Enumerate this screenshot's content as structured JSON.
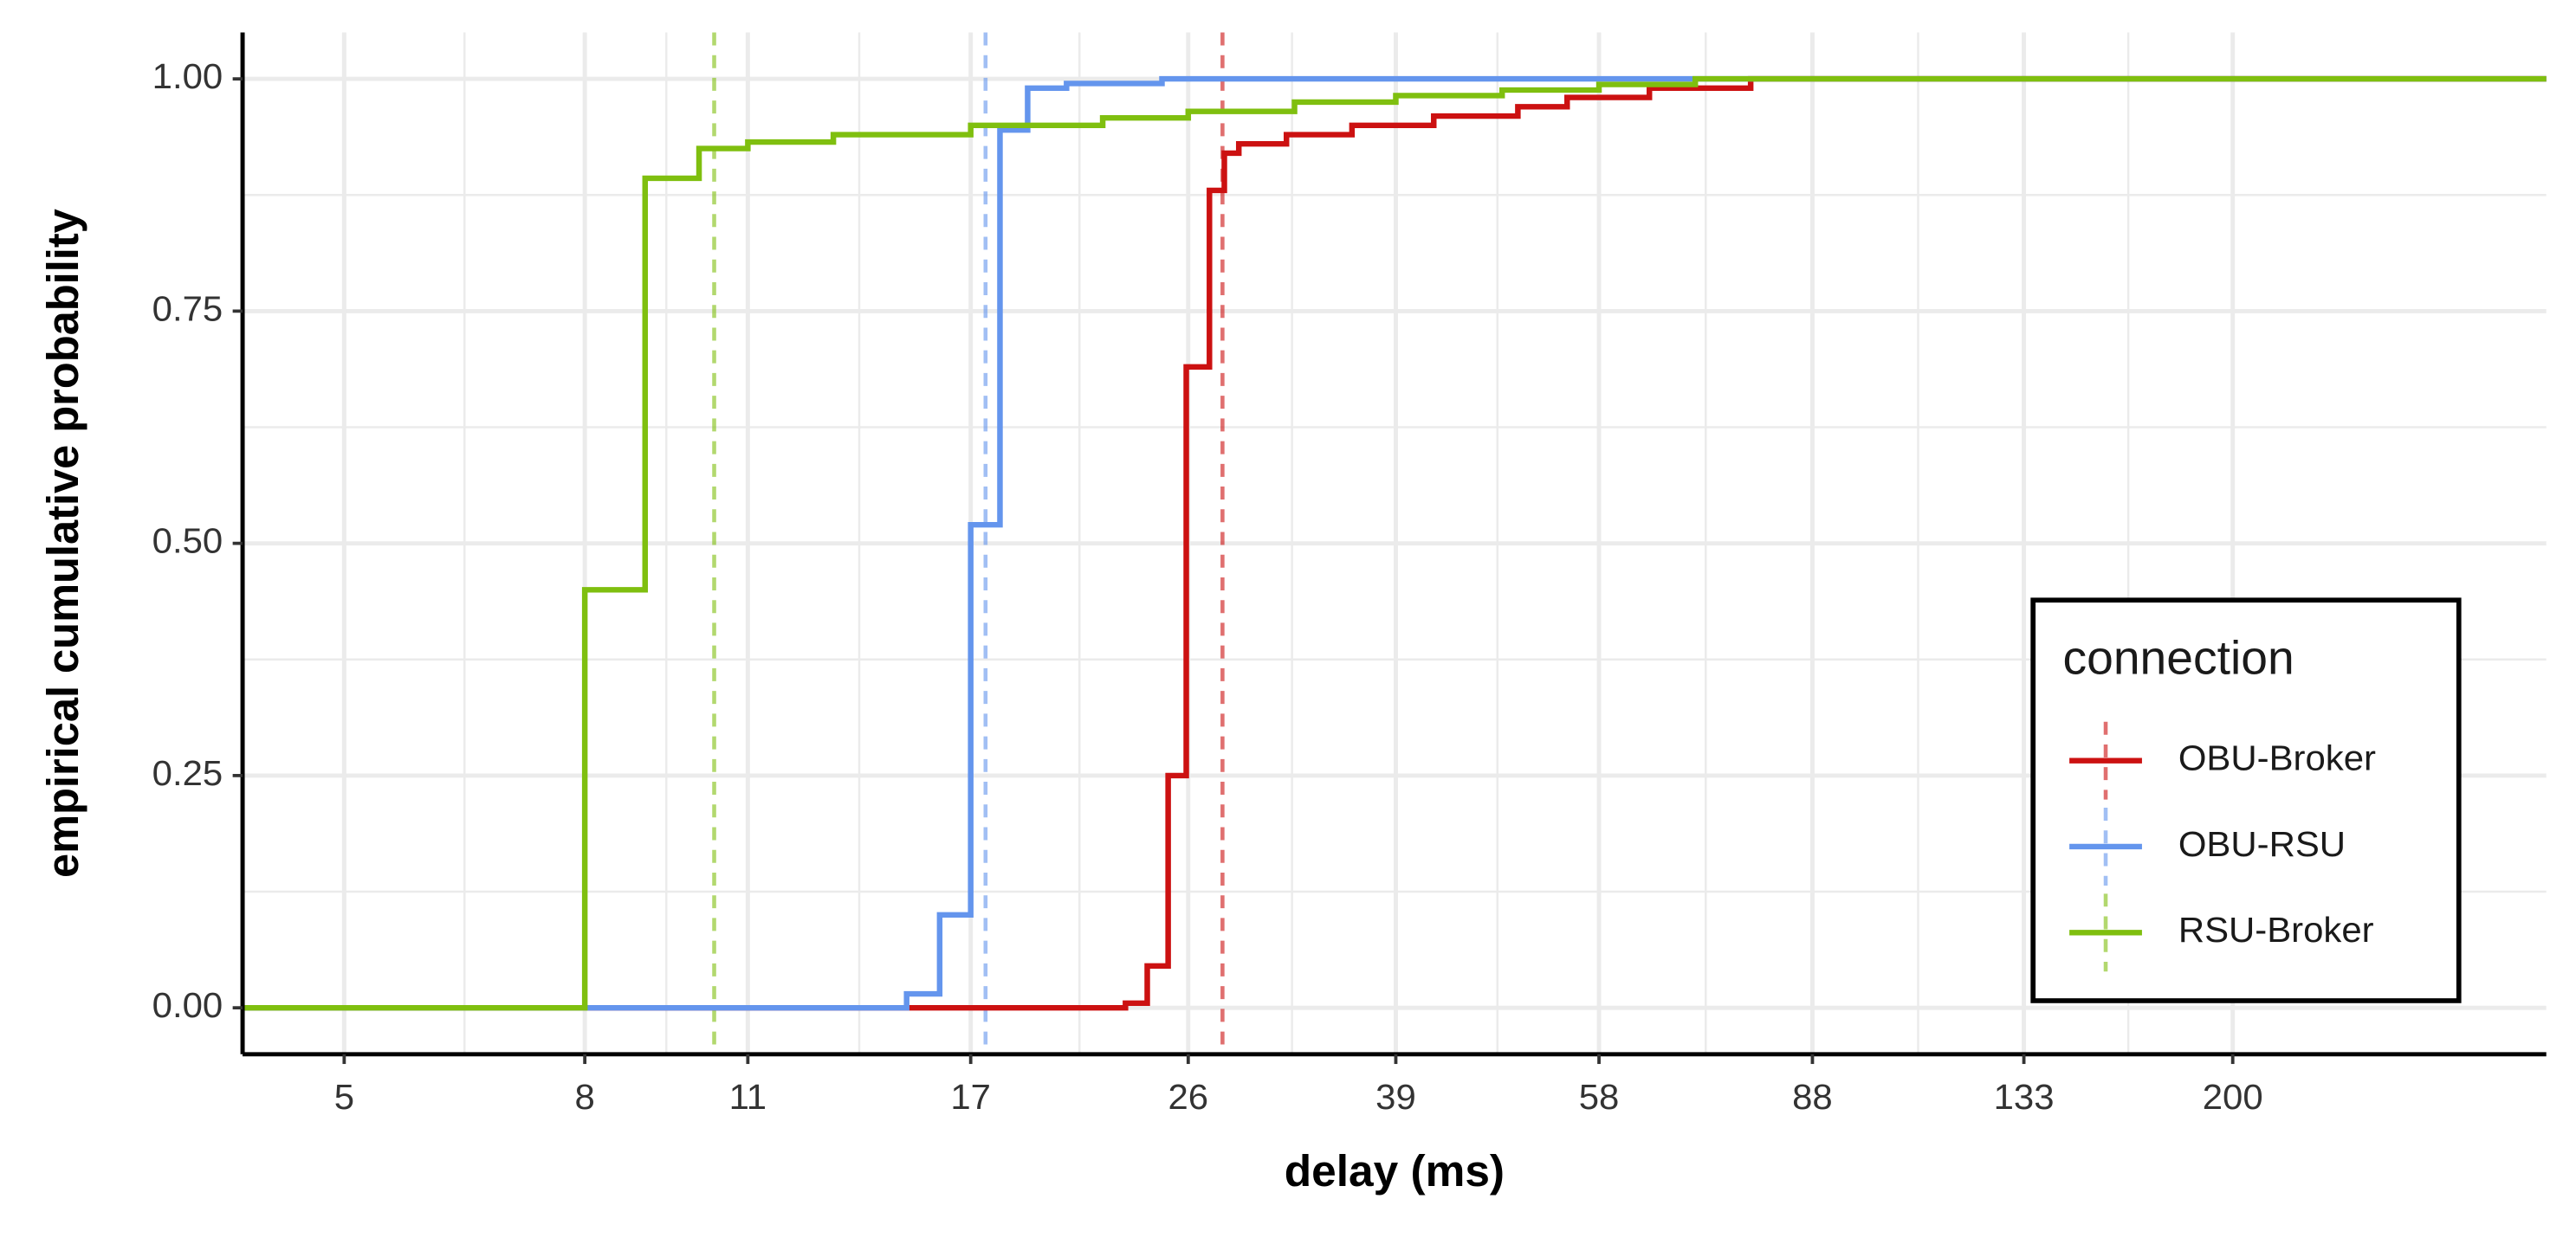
{
  "chart_data": {
    "type": "ecdf",
    "x_label": "delay (ms)",
    "y_label": "empirical cumulative probability",
    "legend_title": "connection",
    "legend_position": "bottom-right",
    "xlog": true,
    "grid": true,
    "xlim": [
      4.1,
      369
    ],
    "ylim": [
      -0.05,
      1.05
    ],
    "xticks": [
      5,
      8,
      11,
      17,
      26,
      39,
      58,
      88,
      133,
      200
    ],
    "yticks": [
      {
        "value": 0,
        "label": "0.00"
      },
      {
        "value": 0.25,
        "label": "0.25"
      },
      {
        "value": 0.5,
        "label": "0.50"
      },
      {
        "value": 0.75,
        "label": "0.75"
      },
      {
        "value": 1,
        "label": "1.00"
      }
    ],
    "series": [
      {
        "name": "OBU-Broker",
        "color": "#cc1111",
        "mean": 27.8,
        "x": [
          4.1,
          23.0,
          24.0,
          25.0,
          25.9,
          27.1,
          27.9,
          28.7,
          31.5,
          35.8,
          42,
          49.5,
          54.5,
          64,
          78,
          369
        ],
        "values": [
          0,
          0.005,
          0.045,
          0.25,
          0.69,
          0.88,
          0.92,
          0.93,
          0.94,
          0.95,
          0.96,
          0.97,
          0.98,
          0.99,
          1.0,
          1.0
        ]
      },
      {
        "name": "OBU-RSU",
        "color": "#6495ed",
        "mean": 17.5,
        "x": [
          4.1,
          15.0,
          16.0,
          17.0,
          18.0,
          19.0,
          20.5,
          24.7,
          369
        ],
        "values": [
          0,
          0.015,
          0.1,
          0.52,
          0.945,
          0.99,
          0.995,
          1.0,
          1.0
        ]
      },
      {
        "name": "RSU-Broker",
        "color": "#7fbf0f",
        "mean": 10.3,
        "x": [
          4.1,
          8.0,
          9.0,
          10.0,
          11.0,
          13,
          17,
          22,
          26,
          32,
          39,
          48,
          58,
          70,
          369
        ],
        "values": [
          0,
          0.45,
          0.893,
          0.925,
          0.932,
          0.94,
          0.95,
          0.958,
          0.965,
          0.975,
          0.982,
          0.988,
          0.994,
          1.0,
          1.0
        ]
      }
    ]
  }
}
